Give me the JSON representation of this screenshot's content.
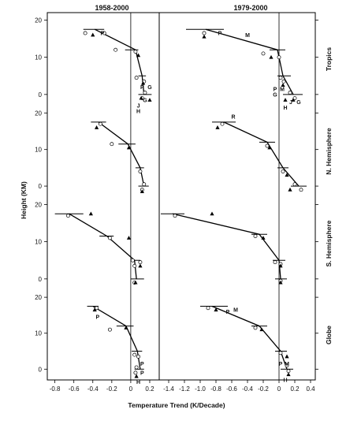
{
  "chart_data": {
    "type": "scatter",
    "ylabel": "Height (KM)",
    "xlabel": "Temperature Trend (K/Decade)",
    "ylim": [
      -3,
      22
    ],
    "y_ticks": [
      0,
      10,
      20
    ],
    "panels": [
      {
        "title": "1958-2000",
        "xlim": [
          -0.88,
          0.3
        ],
        "x_ticks": [
          -0.8,
          -0.6,
          -0.4,
          -0.2,
          0,
          0.2
        ],
        "x_tick_labels": [
          "-0.8",
          "-0.6",
          "-0.4",
          "-0.2",
          "0",
          "0.2"
        ]
      },
      {
        "title": "1979-2000",
        "xlim": [
          -1.52,
          0.46
        ],
        "x_ticks": [
          -1.4,
          -1.2,
          -1.0,
          -0.8,
          -0.6,
          -0.4,
          -0.2,
          0,
          0.2,
          0.4
        ],
        "x_tick_labels": [
          "-1.4",
          "-1.2",
          "-1.0",
          "-0.8",
          "-0.6",
          "-0.4",
          "-0.2",
          "0",
          "0.2",
          "0.4"
        ]
      }
    ],
    "rows": [
      {
        "label": "Tropics",
        "cells": [
          {
            "profile": [
              [
                -0.38,
                17.5
              ],
              [
                0.05,
                12
              ],
              [
                0.12,
                5
              ],
              [
                0.14,
                0
              ]
            ],
            "errors": [
              [
                -0.5,
                -0.28,
                17.5
              ],
              [
                -0.06,
                0.08,
                12
              ],
              [
                0.08,
                0.16,
                5
              ],
              [
                0.08,
                0.22,
                0
              ]
            ],
            "circles": [
              [
                -0.48,
                16.5
              ],
              [
                -0.28,
                16.5
              ],
              [
                -0.16,
                12
              ],
              [
                0.05,
                11.5
              ],
              [
                0.06,
                4.5
              ],
              [
                0.14,
                3.5
              ],
              [
                0.15,
                0.5
              ],
              [
                0.12,
                -1
              ]
            ],
            "triangles": [
              [
                -0.4,
                16
              ],
              [
                0.08,
                10.5
              ],
              [
                0.13,
                3
              ],
              [
                0.11,
                -1
              ],
              [
                0.2,
                -1.5
              ]
            ],
            "letters": [
              {
                "t": "P",
                "x": -0.3,
                "y": 16.5
              },
              {
                "t": "P",
                "x": 0.12,
                "y": 2
              },
              {
                "t": "G",
                "x": 0.2,
                "y": 2
              },
              {
                "t": "G",
                "x": 0.15,
                "y": -1.5
              },
              {
                "t": "J",
                "x": 0.08,
                "y": -3
              },
              {
                "t": "H",
                "x": 0.08,
                "y": -4.5
              }
            ]
          },
          {
            "profile": [
              [
                -0.93,
                17.5
              ],
              [
                -0.02,
                12
              ],
              [
                0.05,
                5
              ],
              [
                0.18,
                0
              ]
            ],
            "errors": [
              [
                -1.18,
                -0.7,
                17.5
              ],
              [
                -0.12,
                0.08,
                12
              ],
              [
                -0.02,
                0.15,
                5
              ],
              [
                0.05,
                0.3,
                0
              ]
            ],
            "circles": [
              [
                -0.95,
                16.5
              ],
              [
                -0.2,
                11
              ],
              [
                0,
                10
              ],
              [
                0.02,
                4.5
              ],
              [
                0.06,
                3.5
              ],
              [
                0.14,
                0.5
              ],
              [
                0.2,
                -1
              ]
            ],
            "triangles": [
              [
                -0.95,
                15.5
              ],
              [
                -0.1,
                10
              ],
              [
                0.05,
                2.5
              ],
              [
                0.08,
                -1.5
              ],
              [
                0.18,
                -1.5
              ]
            ],
            "letters": [
              {
                "t": "P",
                "x": -0.75,
                "y": 16.5
              },
              {
                "t": "M",
                "x": -0.4,
                "y": 16
              },
              {
                "t": "P",
                "x": -0.05,
                "y": 1.5
              },
              {
                "t": "M",
                "x": 0.04,
                "y": 1.5
              },
              {
                "t": "G",
                "x": -0.05,
                "y": 0
              },
              {
                "t": "J",
                "x": 0.15,
                "y": -2
              },
              {
                "t": "G",
                "x": 0.25,
                "y": -2
              },
              {
                "t": "H",
                "x": 0.08,
                "y": -3.5
              }
            ]
          }
        ]
      },
      {
        "label": "N. Hemisphere",
        "cells": [
          {
            "profile": [
              [
                -0.34,
                17.5
              ],
              [
                -0.03,
                11.5
              ],
              [
                0.1,
                5
              ],
              [
                0.14,
                0
              ]
            ],
            "errors": [
              [
                -0.42,
                -0.26,
                17.5
              ],
              [
                -0.13,
                0.05,
                11.5
              ],
              [
                0.05,
                0.14,
                5
              ],
              [
                0.08,
                0.19,
                0
              ]
            ],
            "circles": [
              [
                -0.32,
                17
              ],
              [
                -0.2,
                11.5
              ],
              [
                0.1,
                4
              ],
              [
                0.14,
                0.5
              ],
              [
                0.12,
                -1
              ]
            ],
            "triangles": [
              [
                -0.36,
                16
              ],
              [
                -0.02,
                10.5
              ],
              [
                0.12,
                -1.5
              ]
            ],
            "letters": []
          },
          {
            "profile": [
              [
                -0.7,
                17.5
              ],
              [
                -0.15,
                12
              ],
              [
                0.05,
                5
              ],
              [
                0.25,
                0
              ]
            ],
            "errors": [
              [
                -0.85,
                -0.55,
                17.5
              ],
              [
                -0.25,
                -0.05,
                12
              ],
              [
                -0.02,
                0.12,
                5
              ],
              [
                0.15,
                0.35,
                0
              ]
            ],
            "circles": [
              [
                -0.72,
                17
              ],
              [
                -0.15,
                11
              ],
              [
                0.05,
                4
              ],
              [
                0.2,
                0.5
              ],
              [
                0.28,
                -1
              ]
            ],
            "triangles": [
              [
                -0.78,
                16
              ],
              [
                -0.12,
                10.5
              ],
              [
                0.1,
                3
              ],
              [
                0.14,
                -1
              ]
            ],
            "letters": [
              {
                "t": "R",
                "x": -0.58,
                "y": 19
              }
            ]
          }
        ]
      },
      {
        "label": "S. Hemisphere",
        "cells": [
          {
            "profile": [
              [
                -0.65,
                17.5
              ],
              [
                -0.25,
                11.5
              ],
              [
                0.04,
                5
              ],
              [
                0.06,
                0
              ]
            ],
            "errors": [
              [
                -0.8,
                -0.5,
                17.5
              ],
              [
                -0.33,
                -0.18,
                11.5
              ],
              [
                0.0,
                0.1,
                5
              ],
              [
                0.0,
                0.14,
                0
              ]
            ],
            "circles": [
              [
                -0.66,
                17
              ],
              [
                -0.22,
                11
              ],
              [
                0.02,
                5
              ],
              [
                0.1,
                4.5
              ],
              [
                0.04,
                3.5
              ],
              [
                0.04,
                -1
              ]
            ],
            "triangles": [
              [
                -0.42,
                17.5
              ],
              [
                -0.02,
                11
              ],
              [
                0.1,
                3.5
              ],
              [
                0.05,
                -1
              ]
            ],
            "letters": []
          },
          {
            "profile": [
              [
                -1.35,
                17.5
              ],
              [
                -0.25,
                12
              ],
              [
                0.0,
                5
              ],
              [
                0.02,
                0
              ]
            ],
            "errors": [
              [
                -1.5,
                -1.2,
                17.5
              ],
              [
                -0.35,
                -0.15,
                12
              ],
              [
                -0.08,
                0.08,
                5
              ],
              [
                -0.05,
                0.1,
                0
              ]
            ],
            "circles": [
              [
                -1.32,
                17
              ],
              [
                -0.3,
                11.5
              ],
              [
                -0.05,
                4.5
              ],
              [
                0.02,
                4
              ],
              [
                0.02,
                -0.5
              ]
            ],
            "triangles": [
              [
                -0.85,
                17.5
              ],
              [
                -0.2,
                11
              ],
              [
                0.02,
                3.5
              ],
              [
                0.02,
                -1
              ]
            ],
            "letters": []
          }
        ]
      },
      {
        "label": "Globe",
        "cells": [
          {
            "profile": [
              [
                -0.4,
                17.5
              ],
              [
                -0.05,
                12
              ],
              [
                0.07,
                5
              ],
              [
                0.1,
                0
              ]
            ],
            "errors": [
              [
                -0.46,
                -0.34,
                17.5
              ],
              [
                -0.15,
                0.03,
                12
              ],
              [
                0.01,
                0.12,
                5
              ],
              [
                0.04,
                0.14,
                0
              ]
            ],
            "circles": [
              [
                -0.36,
                17
              ],
              [
                -0.22,
                11
              ],
              [
                0.04,
                4
              ],
              [
                0.08,
                3.5
              ],
              [
                0.06,
                0.5
              ],
              [
                0.05,
                -1
              ]
            ],
            "triangles": [
              [
                -0.38,
                16.5
              ],
              [
                -0.05,
                11.5
              ],
              [
                0.06,
                -2
              ]
            ],
            "letters": [
              {
                "t": "P",
                "x": -0.35,
                "y": 14.5
              },
              {
                "t": "P",
                "x": 0.12,
                "y": 1.5
              },
              {
                "t": "P",
                "x": 0.12,
                "y": -1
              },
              {
                "t": "H",
                "x": 0.08,
                "y": -3.5
              }
            ]
          },
          {
            "profile": [
              [
                -0.85,
                17.5
              ],
              [
                -0.25,
                12
              ],
              [
                0.02,
                5
              ],
              [
                0.1,
                0
              ]
            ],
            "errors": [
              [
                -1.0,
                -0.65,
                17.5
              ],
              [
                -0.35,
                -0.15,
                12
              ],
              [
                -0.05,
                0.1,
                5
              ],
              [
                0.02,
                0.18,
                0
              ]
            ],
            "circles": [
              [
                -0.9,
                17
              ],
              [
                -0.3,
                11.5
              ],
              [
                0.02,
                4.5
              ],
              [
                0.1,
                1
              ],
              [
                0.12,
                -0.5
              ]
            ],
            "triangles": [
              [
                -0.8,
                16.5
              ],
              [
                -0.22,
                11
              ],
              [
                0.1,
                3.5
              ],
              [
                0.12,
                -1.5
              ]
            ],
            "letters": [
              {
                "t": "P",
                "x": -0.65,
                "y": 16
              },
              {
                "t": "M",
                "x": -0.55,
                "y": 16.5
              },
              {
                "t": "P",
                "x": 0.02,
                "y": 1.5
              },
              {
                "t": "M",
                "x": 0.1,
                "y": 1.5
              },
              {
                "t": "H",
                "x": 0.08,
                "y": -3
              }
            ]
          }
        ]
      }
    ]
  }
}
